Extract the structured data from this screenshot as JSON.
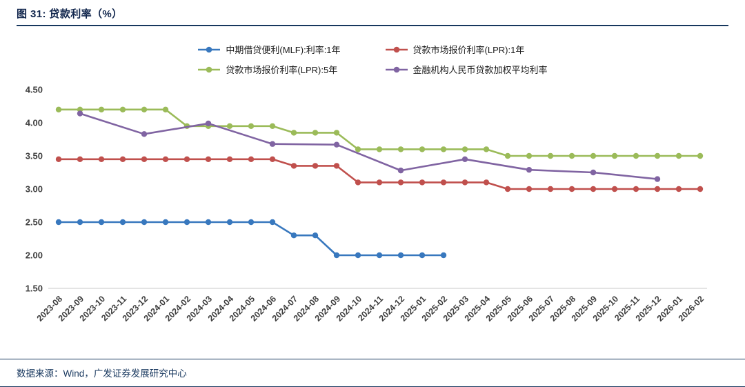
{
  "figure": {
    "title": "图 31: 贷款利率（%）",
    "source": "数据来源：Wind，广发证券发展研究中心"
  },
  "colors": {
    "accent_navy": "#17375E",
    "axis_text": "#3f3f3f",
    "axis_line": "#c9c9c9",
    "series_blue": "#3878BE",
    "series_red": "#C0504D",
    "series_green": "#9BBB59",
    "series_purple": "#8064A2"
  },
  "chart_data": {
    "type": "line",
    "title": "贷款利率（%）",
    "xlabel": "",
    "ylabel": "",
    "grid": false,
    "legend_position": "top",
    "ylim": [
      1.5,
      4.5
    ],
    "yticks": [
      1.5,
      2.0,
      2.5,
      3.0,
      3.5,
      4.0,
      4.5
    ],
    "x": [
      "2023-08",
      "2023-09",
      "2023-10",
      "2023-11",
      "2023-12",
      "2024-01",
      "2024-02",
      "2024-03",
      "2024-04",
      "2024-05",
      "2024-06",
      "2024-07",
      "2024-08",
      "2024-09",
      "2024-10",
      "2024-11",
      "2024-12",
      "2025-01",
      "2025-02",
      "2025-03",
      "2025-04",
      "2025-05",
      "2025-06",
      "2025-07",
      "2025-08",
      "2025-09",
      "2025-10",
      "2025-11",
      "2025-12",
      "2026-01",
      "2026-02"
    ],
    "series": [
      {
        "name": "中期借贷便利(MLF):利率:1年",
        "color": "#3878BE",
        "values": [
          2.5,
          2.5,
          2.5,
          2.5,
          2.5,
          2.5,
          2.5,
          2.5,
          2.5,
          2.5,
          2.5,
          2.3,
          2.3,
          2.0,
          2.0,
          2.0,
          2.0,
          2.0,
          2.0,
          null,
          null,
          null,
          null,
          null,
          null,
          null,
          null,
          null,
          null,
          null,
          null
        ]
      },
      {
        "name": "贷款市场报价利率(LPR):1年",
        "color": "#C0504D",
        "values": [
          3.45,
          3.45,
          3.45,
          3.45,
          3.45,
          3.45,
          3.45,
          3.45,
          3.45,
          3.45,
          3.45,
          3.35,
          3.35,
          3.35,
          3.1,
          3.1,
          3.1,
          3.1,
          3.1,
          3.1,
          3.1,
          3.0,
          3.0,
          3.0,
          3.0,
          3.0,
          3.0,
          3.0,
          3.0,
          3.0,
          3.0
        ]
      },
      {
        "name": "贷款市场报价利率(LPR):5年",
        "color": "#9BBB59",
        "values": [
          4.2,
          4.2,
          4.2,
          4.2,
          4.2,
          4.2,
          3.95,
          3.95,
          3.95,
          3.95,
          3.95,
          3.85,
          3.85,
          3.85,
          3.6,
          3.6,
          3.6,
          3.6,
          3.6,
          3.6,
          3.6,
          3.5,
          3.5,
          3.5,
          3.5,
          3.5,
          3.5,
          3.5,
          3.5,
          3.5,
          3.5
        ]
      },
      {
        "name": "金融机构人民币贷款加权平均利率",
        "color": "#8064A2",
        "values": [
          null,
          4.14,
          null,
          null,
          3.83,
          null,
          null,
          3.99,
          null,
          null,
          3.68,
          null,
          null,
          3.67,
          null,
          null,
          3.28,
          null,
          null,
          3.45,
          null,
          null,
          3.29,
          null,
          null,
          3.25,
          null,
          null,
          3.15,
          null,
          null
        ]
      }
    ],
    "legend_rows": [
      [
        0,
        1
      ],
      [
        2,
        3
      ]
    ]
  }
}
